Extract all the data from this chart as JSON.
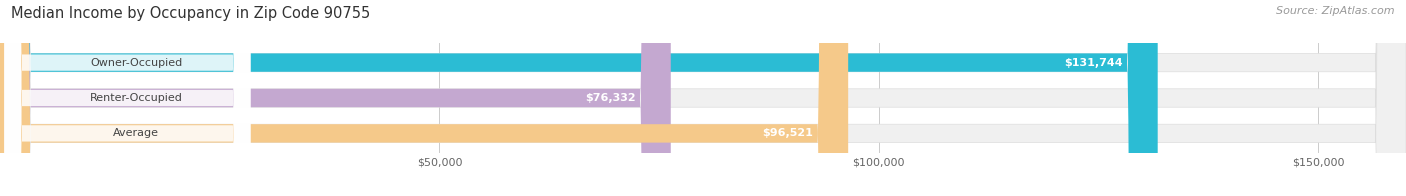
{
  "title": "Median Income by Occupancy in Zip Code 90755",
  "source": "Source: ZipAtlas.com",
  "categories": [
    "Owner-Occupied",
    "Renter-Occupied",
    "Average"
  ],
  "values": [
    131744,
    76332,
    96521
  ],
  "labels": [
    "$131,744",
    "$76,332",
    "$96,521"
  ],
  "bar_colors": [
    "#2bbcd4",
    "#c4a8d0",
    "#f5c98a"
  ],
  "bar_bg_color": "#e8e8e8",
  "xlim": [
    0,
    160000
  ],
  "xticks": [
    50000,
    100000,
    150000
  ],
  "xticklabels": [
    "$50,000",
    "$100,000",
    "$150,000"
  ],
  "title_fontsize": 10.5,
  "label_fontsize": 8,
  "bar_label_fontsize": 8,
  "source_fontsize": 8,
  "bar_height": 0.52,
  "figsize": [
    14.06,
    1.96
  ],
  "dpi": 100,
  "bg_color": "#ffffff"
}
